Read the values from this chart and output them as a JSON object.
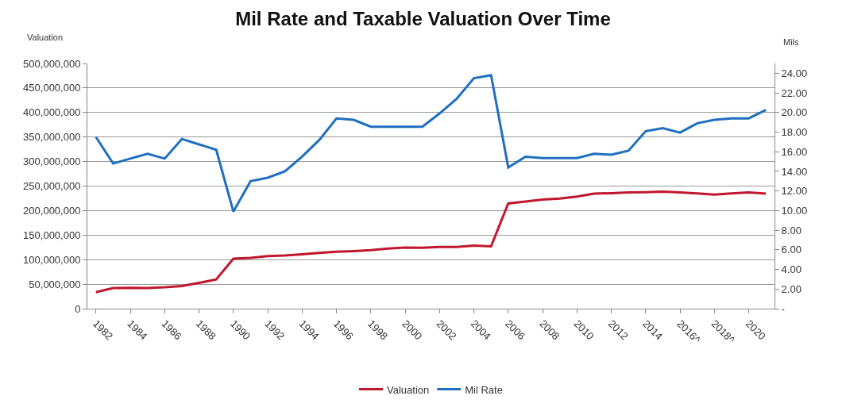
{
  "chart_data": {
    "type": "line",
    "title": "Mil Rate and Taxable Valuation Over Time",
    "ylabel": "Valuation",
    "y2label": "Mils",
    "categories": [
      "1982",
      null,
      "1984",
      null,
      "1986",
      null,
      "1988",
      null,
      "1990",
      null,
      "1992",
      null,
      "1994",
      null,
      "1996",
      null,
      "1998",
      null,
      "2000",
      null,
      "2002",
      null,
      "2004",
      null,
      "2006",
      null,
      "2008",
      null,
      "2010",
      null,
      "2012",
      null,
      "2014",
      null,
      "2016^",
      null,
      "2018^",
      null,
      "2020",
      null
    ],
    "series": [
      {
        "name": "Valuation",
        "color": "#c0172d",
        "values": [
          33500000,
          42000000,
          42500000,
          42000000,
          43500000,
          46000000,
          52500000,
          59500000,
          102000000,
          103500000,
          107000000,
          108500000,
          111000000,
          113500000,
          116000000,
          117500000,
          119500000,
          122500000,
          124500000,
          124000000,
          126000000,
          126000000,
          128500000,
          127000000,
          214500000,
          218500000,
          222500000,
          224500000,
          228500000,
          234500000,
          235500000,
          237000000,
          237500000,
          238500000,
          237000000,
          235000000,
          232500000,
          235000000,
          237000000,
          234500000
        ]
      },
      {
        "name": "Mil Rate",
        "color": "#1f6fc1",
        "axis": "y2",
        "values": [
          17.5,
          14.8,
          15.3,
          15.8,
          15.3,
          17.3,
          16.75,
          16.2,
          9.9,
          13.0,
          13.35,
          14.0,
          15.5,
          17.2,
          19.4,
          19.25,
          18.55,
          18.55,
          18.55,
          18.55,
          19.9,
          21.4,
          23.5,
          23.8,
          14.4,
          15.5,
          15.35,
          15.35,
          15.35,
          15.8,
          15.7,
          16.1,
          18.1,
          18.4,
          17.95,
          18.9,
          19.25,
          19.4,
          19.4,
          20.25
        ]
      }
    ],
    "ylim": [
      0,
      500000000
    ],
    "yticks": [
      0,
      {
        "value": 50000000,
        "label": "50,000,000"
      },
      {
        "value": 100000000,
        "label": "100,000,000"
      },
      {
        "value": 150000000,
        "label": "150,000,000"
      },
      {
        "value": 200000000,
        "label": "200,000,000"
      },
      {
        "value": 250000000,
        "label": "250,000,000"
      },
      {
        "value": 300000000,
        "label": "300,000,000"
      },
      {
        "value": 350000000,
        "label": "350,000,000"
      },
      {
        "value": 400000000,
        "label": "400,000,000"
      },
      {
        "value": 450000000,
        "label": "450,000,000"
      },
      {
        "value": 500000000,
        "label": "500,000,000"
      }
    ],
    "y2lim": [
      0,
      25
    ],
    "y2ticks": [
      {
        "value": 0,
        "label": "-"
      },
      {
        "value": 2,
        "label": "2.00"
      },
      {
        "value": 4,
        "label": "4.00"
      },
      {
        "value": 6,
        "label": "6.00"
      },
      {
        "value": 8,
        "label": "8.00"
      },
      {
        "value": 10,
        "label": "10.00"
      },
      {
        "value": 12,
        "label": "12.00"
      },
      {
        "value": 14,
        "label": "14.00"
      },
      {
        "value": 16,
        "label": "16.00"
      },
      {
        "value": 18,
        "label": "18.00"
      },
      {
        "value": 20,
        "label": "20.00"
      },
      {
        "value": 22,
        "label": "22.00"
      },
      {
        "value": 24,
        "label": "24.00"
      }
    ],
    "grid": "y",
    "legend": "bottom",
    "marker": "none",
    "line_style": "solid"
  }
}
